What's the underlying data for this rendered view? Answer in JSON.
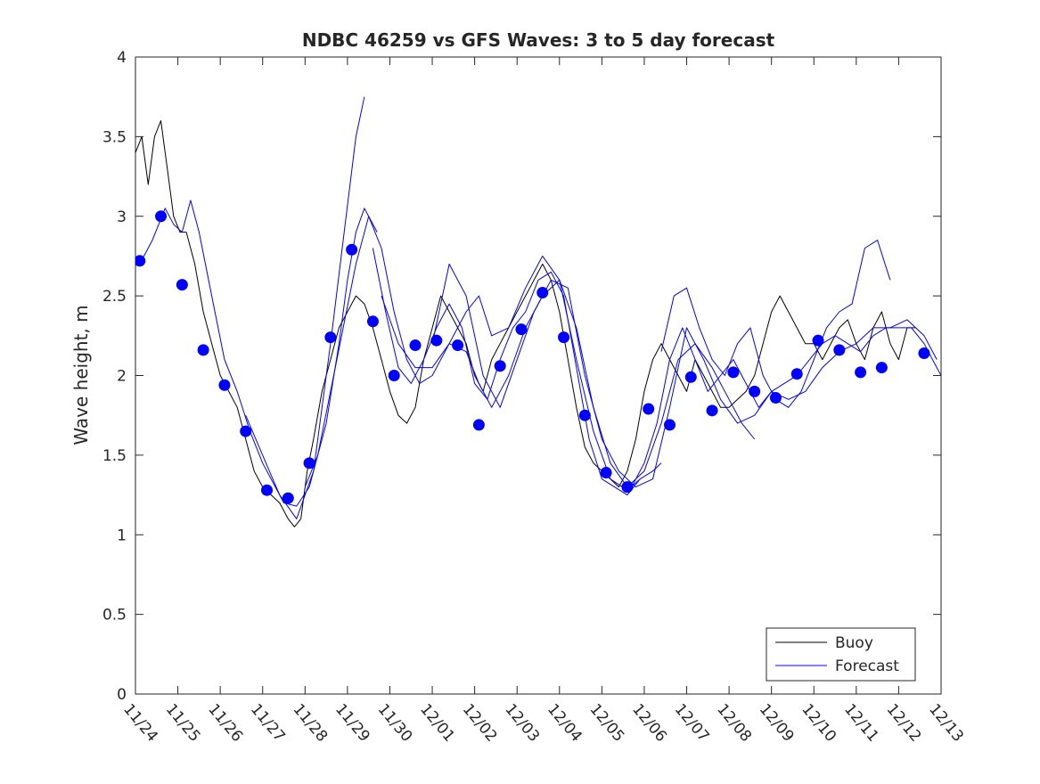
{
  "chart_data": {
    "type": "line",
    "title": "NDBC 46259 vs GFS Waves: 3 to 5 day forecast",
    "xlabel": "",
    "ylabel": "Wave height, m",
    "xlim": [
      0,
      19
    ],
    "ylim": [
      0,
      4
    ],
    "x_tick_labels": [
      "11/24",
      "11/25",
      "11/26",
      "11/27",
      "11/28",
      "11/29",
      "11/30",
      "12/01",
      "12/02",
      "12/03",
      "12/04",
      "12/05",
      "12/06",
      "12/07",
      "12/08",
      "12/09",
      "12/10",
      "12/11",
      "12/12",
      "12/13"
    ],
    "y_tick_labels": [
      "0",
      "0.5",
      "1",
      "1.5",
      "2",
      "2.5",
      "3",
      "3.5",
      "4"
    ],
    "y_ticks": [
      0,
      0.5,
      1,
      1.5,
      2,
      2.5,
      3,
      3.5,
      4
    ],
    "legend": {
      "position": "bottom-right",
      "entries": [
        "Buoy",
        "Forecast"
      ]
    },
    "colors": {
      "buoy": "#000000",
      "forecast": "#0000ff",
      "axes": "#262626"
    },
    "series": [
      {
        "name": "Buoy",
        "style": "line",
        "x": [
          0,
          0.15,
          0.3,
          0.45,
          0.6,
          0.75,
          0.9,
          1.05,
          1.2,
          1.4,
          1.6,
          1.8,
          2.0,
          2.2,
          2.4,
          2.6,
          2.8,
          3.0,
          3.2,
          3.4,
          3.6,
          3.75,
          3.9,
          4.05,
          4.2,
          4.4,
          4.6,
          4.8,
          5.0,
          5.2,
          5.4,
          5.6,
          5.8,
          6.0,
          6.2,
          6.4,
          6.6,
          6.8,
          7.0,
          7.2,
          7.4,
          7.6,
          7.8,
          8.0,
          8.2,
          8.4,
          8.6,
          8.8,
          9.0,
          9.2,
          9.4,
          9.6,
          9.8,
          10.0,
          10.2,
          10.4,
          10.6,
          10.8,
          11.0,
          11.2,
          11.4,
          11.6,
          11.8,
          12.0,
          12.2,
          12.4,
          12.6,
          12.8,
          13.0,
          13.2,
          13.4,
          13.6,
          13.8,
          14.0,
          14.2,
          14.4,
          14.6,
          14.8,
          15.0,
          15.2,
          15.4,
          15.6,
          15.8,
          16.0,
          16.2,
          16.4,
          16.6,
          16.8,
          17.0,
          17.2,
          17.4,
          17.6,
          17.8,
          18.0,
          18.2,
          18.4
        ],
        "values": [
          3.4,
          3.5,
          3.2,
          3.5,
          3.6,
          3.3,
          3.0,
          2.9,
          2.9,
          2.7,
          2.4,
          2.2,
          2.0,
          1.9,
          1.8,
          1.6,
          1.4,
          1.3,
          1.25,
          1.2,
          1.1,
          1.05,
          1.1,
          1.4,
          1.6,
          1.9,
          2.1,
          2.3,
          2.4,
          2.5,
          2.45,
          2.3,
          2.1,
          1.9,
          1.75,
          1.7,
          1.8,
          2.1,
          2.3,
          2.5,
          2.4,
          2.3,
          2.2,
          2.0,
          1.9,
          2.1,
          2.2,
          2.3,
          2.4,
          2.5,
          2.6,
          2.7,
          2.6,
          2.4,
          2.1,
          1.8,
          1.55,
          1.45,
          1.4,
          1.35,
          1.3,
          1.4,
          1.6,
          1.9,
          2.1,
          2.2,
          2.1,
          2.0,
          1.9,
          2.1,
          2.0,
          1.9,
          1.8,
          1.8,
          1.85,
          1.9,
          2.0,
          2.2,
          2.4,
          2.5,
          2.4,
          2.3,
          2.2,
          2.2,
          2.1,
          2.2,
          2.3,
          2.35,
          2.2,
          2.1,
          2.3,
          2.4,
          2.2,
          2.1,
          2.3,
          2.3
        ]
      },
      {
        "name": "Forecast",
        "style": "line",
        "x": [
          0.1,
          0.4,
          0.7,
          0.9,
          1.1,
          1.3,
          1.5,
          1.8,
          2.1,
          2.4,
          2.7,
          3.0,
          3.3,
          3.5,
          3.8,
          4.1,
          4.5,
          4.8,
          5.0,
          5.2,
          5.4,
          5.7
        ],
        "values": [
          2.7,
          2.85,
          3.05,
          2.95,
          2.9,
          3.1,
          2.9,
          2.5,
          2.1,
          1.9,
          1.65,
          1.45,
          1.3,
          1.2,
          1.18,
          1.3,
          1.7,
          2.2,
          2.6,
          2.9,
          3.05,
          2.9
        ]
      },
      {
        "name": "Forecast",
        "style": "line",
        "x": [
          5.6,
          5.9,
          6.2,
          6.5,
          6.8,
          7.1,
          7.4,
          7.7,
          8.0,
          8.3,
          8.6,
          8.9,
          9.2,
          9.5,
          9.8,
          10.1,
          10.4,
          10.7,
          11.0,
          11.3,
          11.6,
          11.9
        ],
        "values": [
          2.8,
          2.4,
          2.05,
          1.95,
          2.1,
          2.3,
          2.45,
          2.3,
          1.95,
          1.85,
          2.1,
          2.3,
          2.4,
          2.6,
          2.65,
          2.5,
          2.05,
          1.6,
          1.35,
          1.3,
          1.25,
          1.35
        ]
      },
      {
        "name": "Forecast",
        "style": "line",
        "x": [
          11.7,
          12.0,
          12.3,
          12.6,
          12.9,
          13.2,
          13.5,
          13.8,
          14.1,
          14.4,
          14.7,
          15.0,
          15.3,
          15.6,
          15.9,
          16.2,
          16.5,
          16.8,
          17.1,
          17.4,
          17.7,
          18.0,
          18.3,
          18.6,
          18.9,
          19.0
        ],
        "values": [
          1.3,
          1.45,
          1.7,
          2.1,
          2.3,
          2.1,
          1.9,
          2.0,
          2.1,
          1.95,
          1.8,
          1.9,
          1.95,
          2.0,
          2.1,
          2.2,
          2.25,
          2.2,
          2.15,
          2.25,
          2.3,
          2.3,
          2.3,
          2.2,
          2.05,
          2.0
        ]
      },
      {
        "name": "Forecast",
        "style": "line",
        "x": [
          2.6,
          3.0,
          3.4,
          3.8,
          4.2,
          4.6,
          4.9,
          5.2,
          5.4
        ],
        "values": [
          1.75,
          1.5,
          1.25,
          1.1,
          1.4,
          2.2,
          2.85,
          3.5,
          3.75
        ]
      },
      {
        "name": "Forecast",
        "style": "line",
        "x": [
          5.8,
          6.2,
          6.6,
          7.0,
          7.4,
          7.8,
          8.1,
          8.4,
          8.8,
          9.2,
          9.6,
          10.0,
          10.4,
          10.8,
          11.2,
          11.6,
          11.9,
          12.2,
          12.4
        ],
        "values": [
          2.5,
          2.2,
          2.05,
          2.05,
          2.2,
          2.4,
          2.5,
          2.25,
          2.3,
          2.55,
          2.75,
          2.6,
          2.1,
          1.65,
          1.35,
          1.28,
          1.35,
          1.4,
          1.45
        ]
      },
      {
        "name": "Forecast",
        "style": "line",
        "x": [
          12.4,
          12.7,
          13.0,
          13.3,
          13.6,
          13.9,
          14.2,
          14.5,
          14.8,
          15.1,
          15.4,
          15.7,
          16.0,
          16.3,
          16.6,
          16.9,
          17.2,
          17.5,
          17.8
        ],
        "values": [
          2.15,
          2.5,
          2.55,
          2.3,
          2.1,
          2.0,
          2.2,
          2.3,
          2.0,
          1.85,
          1.8,
          1.9,
          2.1,
          2.3,
          2.4,
          2.45,
          2.8,
          2.85,
          2.6
        ]
      },
      {
        "name": "Forecast",
        "style": "line",
        "x": [
          4.0,
          4.3,
          4.6,
          4.9,
          5.2,
          5.5,
          5.8,
          6.1,
          6.4,
          6.7,
          7.0,
          7.4,
          7.8,
          8.1,
          8.4,
          8.8,
          9.2,
          9.6,
          10.0,
          10.4,
          10.8,
          11.2,
          11.6,
          12.0,
          12.4,
          12.8,
          13.2,
          13.6,
          14.0,
          14.3,
          14.6
        ],
        "values": [
          1.3,
          1.5,
          1.9,
          2.3,
          2.7,
          3.0,
          2.8,
          2.4,
          2.1,
          1.95,
          2.0,
          2.2,
          2.15,
          1.95,
          1.8,
          2.0,
          2.3,
          2.5,
          2.6,
          2.3,
          1.8,
          1.45,
          1.3,
          1.4,
          1.7,
          2.1,
          2.2,
          2.05,
          1.85,
          1.7,
          1.6
        ]
      },
      {
        "name": "Forecast",
        "style": "line",
        "x": [
          7.0,
          7.4,
          7.8,
          8.2,
          8.6,
          9.0,
          9.4,
          9.8,
          10.2,
          10.6,
          11.0,
          11.4,
          11.8,
          12.2,
          12.6,
          13.0,
          13.4,
          13.8,
          14.2,
          14.6,
          15.0,
          15.4,
          15.8,
          16.2,
          16.6,
          17.0,
          17.4,
          17.8,
          18.2,
          18.6,
          18.9
        ],
        "values": [
          2.2,
          2.7,
          2.5,
          2.0,
          1.8,
          2.1,
          2.4,
          2.6,
          2.55,
          2.0,
          1.6,
          1.4,
          1.3,
          1.35,
          1.8,
          2.3,
          2.1,
          1.85,
          1.7,
          1.75,
          1.9,
          1.85,
          1.9,
          2.05,
          2.15,
          2.2,
          2.3,
          2.3,
          2.35,
          2.25,
          2.1
        ]
      },
      {
        "name": "Forecast",
        "style": "markers",
        "x": [
          0.1,
          0.6,
          1.1,
          1.6,
          2.1,
          2.6,
          3.1,
          3.6,
          4.1,
          4.6,
          5.1,
          5.6,
          6.1,
          6.6,
          7.1,
          7.6,
          8.1,
          8.6,
          9.1,
          9.6,
          10.1,
          10.6,
          11.1,
          11.6,
          12.1,
          12.6,
          13.1,
          13.6,
          14.1,
          14.6,
          15.1,
          15.6,
          16.1,
          16.6,
          17.1,
          17.6,
          18.6
        ],
        "values": [
          2.72,
          3.0,
          2.57,
          2.16,
          1.94,
          1.65,
          1.28,
          1.23,
          1.45,
          2.24,
          2.79,
          2.34,
          2.0,
          2.19,
          2.22,
          2.19,
          1.69,
          2.06,
          2.29,
          2.52,
          2.24,
          1.75,
          1.39,
          1.3,
          1.79,
          1.69,
          1.99,
          1.78,
          2.02,
          1.9,
          1.86,
          2.01,
          2.22,
          2.16,
          2.02,
          2.05,
          2.14
        ]
      }
    ]
  }
}
